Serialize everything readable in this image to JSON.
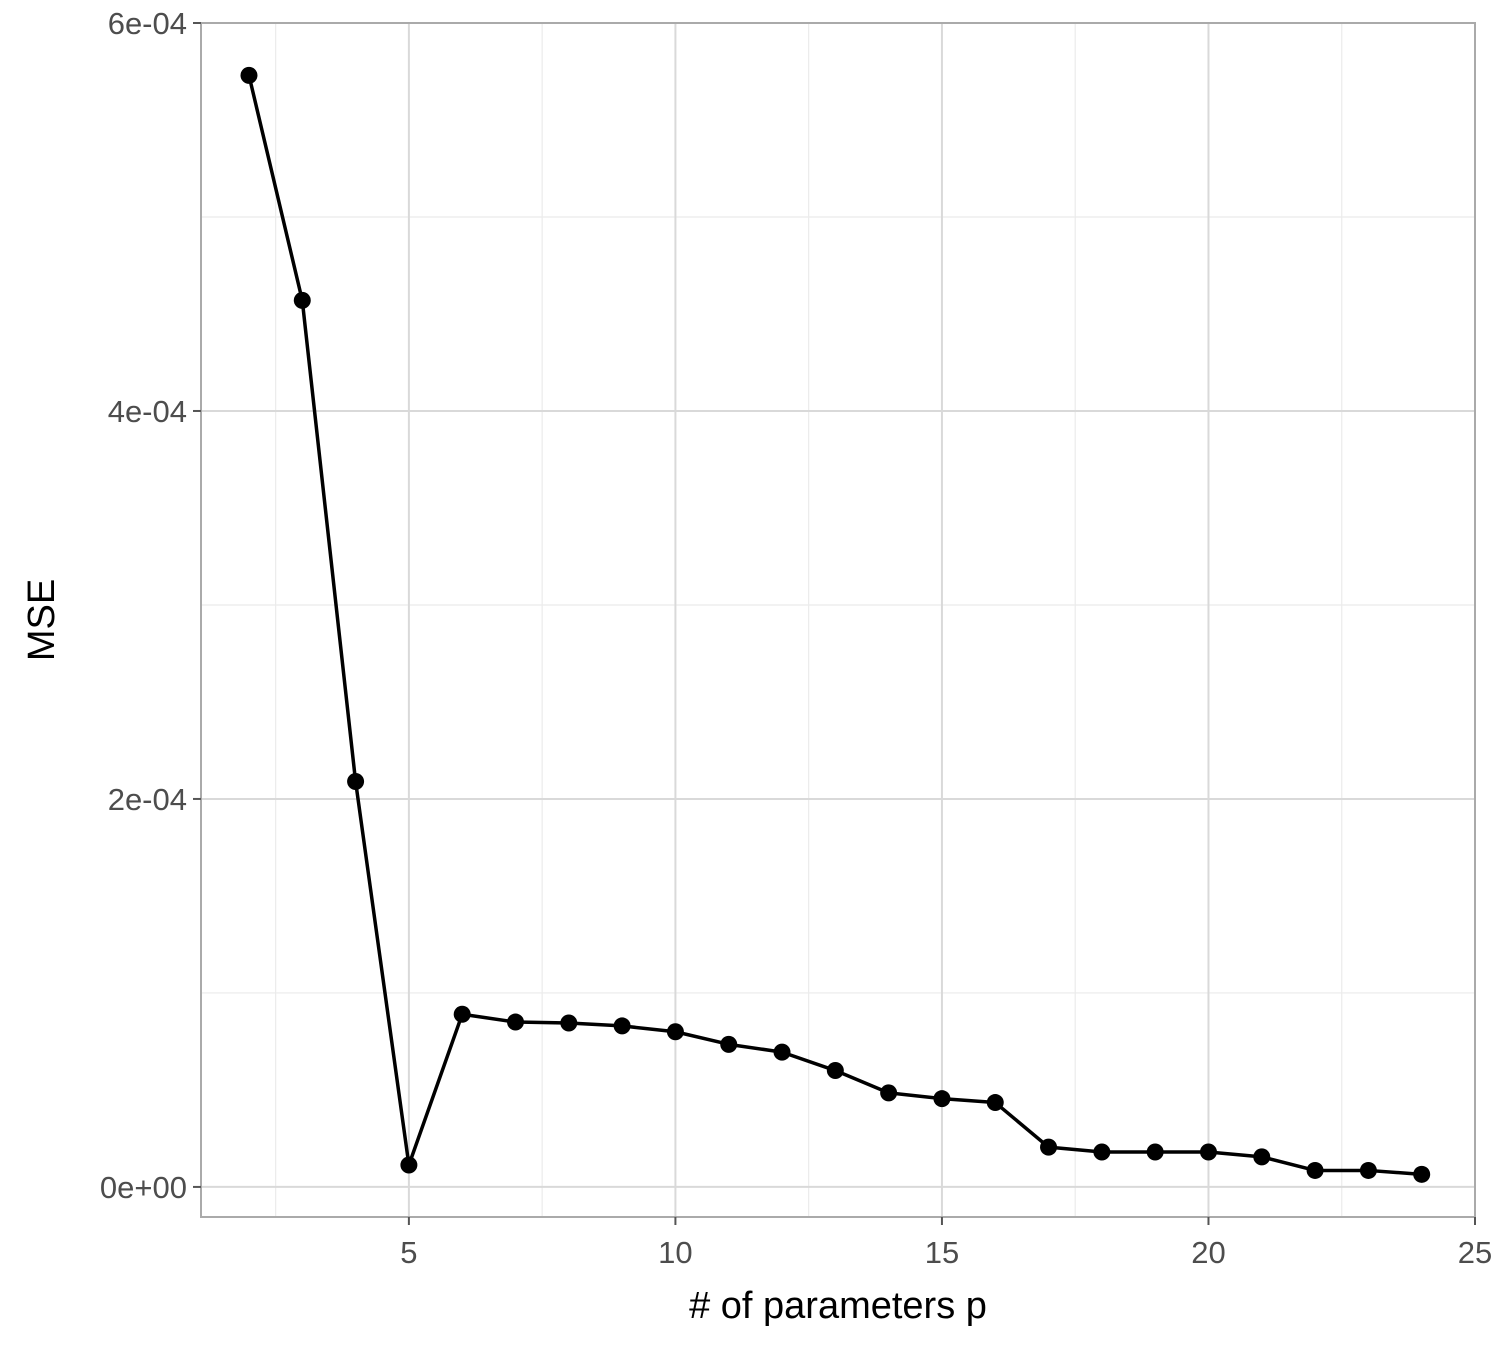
{
  "chart_data": {
    "type": "line",
    "xlabel": "# of parameters p",
    "ylabel": "MSE",
    "xlim": [
      1.1,
      25.0
    ],
    "ylim": [
      -1.55e-05,
      0.0006
    ],
    "x_ticks": [
      5,
      10,
      15,
      20,
      25
    ],
    "x_tick_labels": [
      "5",
      "10",
      "15",
      "20",
      "25"
    ],
    "x_minor_ticks": [
      2.5,
      7.5,
      12.5,
      17.5,
      22.5
    ],
    "y_ticks": [
      0,
      0.0002,
      0.0004,
      0.0006
    ],
    "y_tick_labels": [
      "0e+00",
      "2e-04",
      "4e-04",
      "6e-04"
    ],
    "y_minor_ticks": [
      0.0001,
      0.0003,
      0.0005
    ],
    "grid": true,
    "legend": "none",
    "series": [
      {
        "color": "#000000",
        "x": [
          2,
          3,
          4,
          5,
          6,
          7,
          8,
          9,
          10,
          11,
          12,
          13,
          14,
          15,
          16,
          17,
          18,
          19,
          20,
          21,
          22,
          23,
          24
        ],
        "y": [
          0.000573,
          0.000457,
          0.000209,
          1.13e-05,
          8.9e-05,
          8.5e-05,
          8.45e-05,
          8.3e-05,
          8e-05,
          7.35e-05,
          6.95e-05,
          6e-05,
          4.85e-05,
          4.55e-05,
          4.35e-05,
          2.05e-05,
          1.8e-05,
          1.8e-05,
          1.8e-05,
          1.55e-05,
          8.5e-06,
          8.5e-06,
          6.5e-06
        ]
      }
    ]
  }
}
